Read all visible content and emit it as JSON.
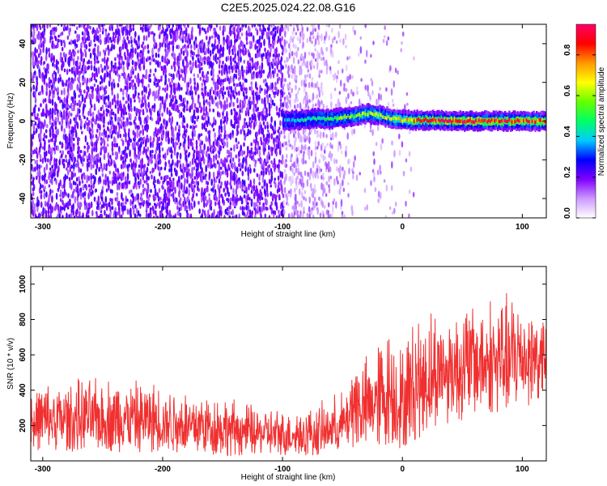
{
  "figure": {
    "title": "C2E5.2025.024.22.08.G16"
  },
  "chart_data": [
    {
      "type": "heatmap",
      "xlabel": "Height of straight line (km)",
      "ylabel": "Frequency (Hz)",
      "xlim": [
        -310,
        120
      ],
      "ylim": [
        -50,
        50
      ],
      "xticks": [
        -300,
        -200,
        -100,
        0,
        100
      ],
      "xtick_labels": [
        "-300",
        "-200",
        "-100",
        "0",
        "100"
      ],
      "yticks": [
        -40,
        -20,
        0,
        20,
        40
      ],
      "ytick_labels": [
        "-40",
        "-20",
        "0",
        "20",
        "40"
      ],
      "colorbar": {
        "label": "Normalized spectral amplitude",
        "range": [
          0,
          0.95
        ],
        "ticks": [
          0,
          0.2,
          0.4,
          0.6,
          0.8
        ],
        "tick_labels": [
          "0.0",
          "0.2",
          "0.4",
          "0.6",
          "0.8"
        ],
        "colors": [
          "#ffffff",
          "#cc99ff",
          "#7f00ff",
          "#0000ff",
          "#00ccff",
          "#00ff66",
          "#66ff00",
          "#ffff00",
          "#ff9900",
          "#ff0000",
          "#ff0066"
        ]
      },
      "signal_track": {
        "x": [
          -100,
          -90,
          -80,
          -70,
          -60,
          -50,
          -40,
          -30,
          -20,
          -10,
          0,
          20,
          40,
          60,
          80,
          100,
          120
        ],
        "freq": [
          0,
          0.5,
          1,
          1.5,
          1,
          2,
          2.5,
          4,
          3,
          1.5,
          0.5,
          0.5,
          0,
          0,
          0,
          0,
          0
        ],
        "peak_amplitude": [
          0.35,
          0.4,
          0.45,
          0.45,
          0.5,
          0.55,
          0.55,
          0.6,
          0.6,
          0.6,
          0.7,
          0.85,
          0.9,
          0.9,
          0.85,
          0.85,
          0.8
        ]
      }
    },
    {
      "type": "line",
      "xlabel": "Height of straight line (km)",
      "ylabel": "SNR (10 * v/v)",
      "xlim": [
        -310,
        120
      ],
      "ylim": [
        0,
        1100
      ],
      "xticks": [
        -300,
        -200,
        -100,
        0,
        100
      ],
      "xtick_labels": [
        "-300",
        "-200",
        "-100",
        "0",
        "100"
      ],
      "yticks": [
        200,
        400,
        600,
        800,
        1000
      ],
      "ytick_labels": [
        "200",
        "400",
        "600",
        "800",
        "1000"
      ],
      "color": "#f03030",
      "envelope": {
        "x": [
          -310,
          -280,
          -250,
          -200,
          -150,
          -100,
          -70,
          -50,
          -45,
          -40,
          -35,
          -30,
          -20,
          -10,
          0,
          10,
          30,
          60,
          90,
          100,
          120
        ],
        "lower": [
          50,
          50,
          50,
          40,
          30,
          25,
          30,
          40,
          60,
          80,
          60,
          50,
          60,
          80,
          60,
          100,
          200,
          250,
          250,
          300,
          350
        ],
        "upper": [
          450,
          480,
          500,
          470,
          380,
          300,
          330,
          420,
          480,
          700,
          600,
          620,
          750,
          800,
          660,
          880,
          900,
          960,
          980,
          1000,
          880
        ]
      }
    }
  ]
}
